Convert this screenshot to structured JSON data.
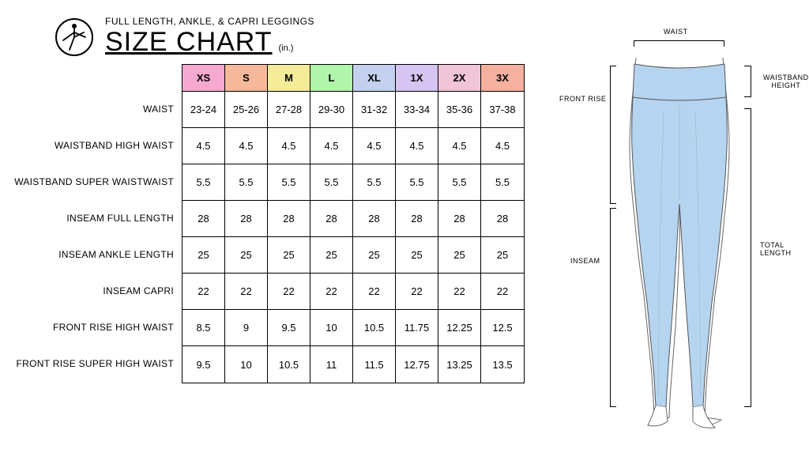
{
  "header": {
    "subtitle": "FULL LENGTH, ANKLE, & CAPRI LEGGINGS",
    "title": "SIZE CHART",
    "unit": "(in.)"
  },
  "sizes": [
    "XS",
    "S",
    "M",
    "L",
    "XL",
    "1X",
    "2X",
    "3X"
  ],
  "sizeColors": [
    "#f5a9d0",
    "#f5b89a",
    "#f5ec9a",
    "#b0f5a9",
    "#c5d0f0",
    "#d5c5f0",
    "#f0c5d8",
    "#f5b0a0"
  ],
  "rows": [
    {
      "label": "WAIST",
      "values": [
        "23-24",
        "25-26",
        "27-28",
        "29-30",
        "31-32",
        "33-34",
        "35-36",
        "37-38"
      ]
    },
    {
      "label": "WAISTBAND HIGH WAIST",
      "values": [
        "4.5",
        "4.5",
        "4.5",
        "4.5",
        "4.5",
        "4.5",
        "4.5",
        "4.5"
      ]
    },
    {
      "label": "WAISTBAND SUPER WAISTWAIST",
      "values": [
        "5.5",
        "5.5",
        "5.5",
        "5.5",
        "5.5",
        "5.5",
        "5.5",
        "5.5"
      ]
    },
    {
      "label": "INSEAM FULL LENGTH",
      "values": [
        "28",
        "28",
        "28",
        "28",
        "28",
        "28",
        "28",
        "28"
      ]
    },
    {
      "label": "INSEAM ANKLE LENGTH",
      "values": [
        "25",
        "25",
        "25",
        "25",
        "25",
        "25",
        "25",
        "25"
      ]
    },
    {
      "label": "INSEAM CAPRI",
      "values": [
        "22",
        "22",
        "22",
        "22",
        "22",
        "22",
        "22",
        "22"
      ]
    },
    {
      "label": "FRONT RISE HIGH WAIST",
      "values": [
        "8.5",
        "9",
        "9.5",
        "10",
        "10.5",
        "11.75",
        "12.25",
        "12.5"
      ]
    },
    {
      "label": "FRONT RISE SUPER HIGH WAIST",
      "values": [
        "9.5",
        "10",
        "10.5",
        "11",
        "11.5",
        "12.75",
        "13.25",
        "13.5"
      ]
    }
  ],
  "diagram": {
    "waistLabel": "WAIST",
    "frontRiseLabel": "FRONT RISE",
    "inseamLabel": "INSEAM",
    "waistbandHeightLabel": "WAISTBAND\nHEIGHT",
    "totalLengthLabel": "TOTAL LENGTH",
    "leggingsFill": "#b5d4f0",
    "leggingsStroke": "#555555"
  }
}
